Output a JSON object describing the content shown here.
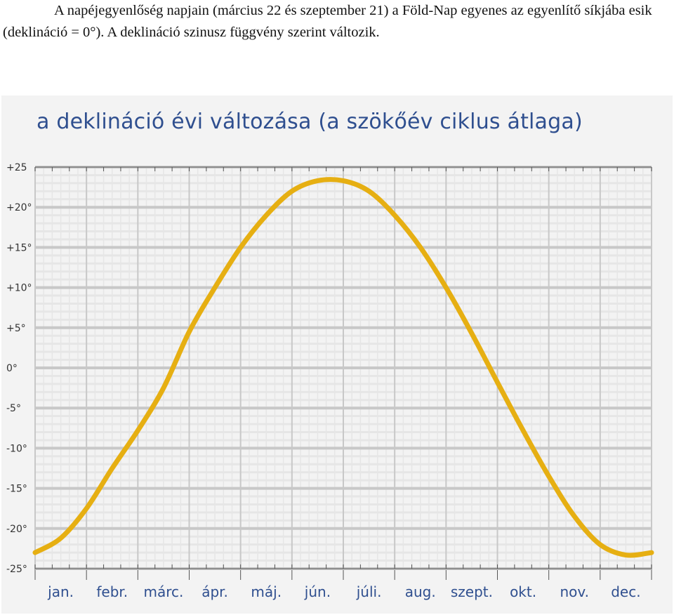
{
  "intro_text": "A napéjegyenlőség napjain (március 22 és szeptember 21) a Föld-Nap egyenes az egyenlítő síkjába esik (deklináció = 0°). A deklináció szinusz függvény szerint változik.",
  "colors": {
    "curve": "#e6af12",
    "grid_major": "#c8c8c8",
    "grid_minor": "#e6e6e6",
    "title": "#2f4f8f",
    "panel": "#f3f3f3"
  },
  "chart_data": {
    "type": "line",
    "title": "a deklináció évi változása (a szökőév ciklus átlaga)",
    "xlabel": "",
    "ylabel": "",
    "ylim": [
      -25,
      25
    ],
    "grid": true,
    "y_tick_values": [
      25,
      20,
      15,
      10,
      5,
      0,
      -5,
      -10,
      -15,
      -20,
      -25
    ],
    "y_tick_labels": [
      "+25",
      "+20°",
      "+15°",
      "+10°",
      "+5°",
      "0°",
      "-5°",
      "-10°",
      "-15°",
      "-20°",
      "-25°"
    ],
    "categories": [
      "jan.",
      "febr.",
      "márc.",
      "ápr.",
      "máj.",
      "jún.",
      "júli.",
      "aug.",
      "szept.",
      "okt.",
      "nov.",
      "dec."
    ],
    "series": [
      {
        "x_unit": "month",
        "points": [
          [
            0.0,
            -23.0
          ],
          [
            0.5,
            -21.2
          ],
          [
            1.0,
            -17.5
          ],
          [
            1.5,
            -12.5
          ],
          [
            2.0,
            -7.8
          ],
          [
            2.5,
            -2.5
          ],
          [
            3.0,
            4.5
          ],
          [
            3.5,
            10.0
          ],
          [
            4.0,
            15.0
          ],
          [
            4.5,
            19.0
          ],
          [
            5.0,
            22.0
          ],
          [
            5.5,
            23.3
          ],
          [
            6.0,
            23.3
          ],
          [
            6.5,
            22.0
          ],
          [
            7.0,
            19.0
          ],
          [
            7.5,
            15.0
          ],
          [
            8.0,
            10.0
          ],
          [
            8.5,
            4.3
          ],
          [
            9.0,
            -1.8
          ],
          [
            9.5,
            -7.8
          ],
          [
            10.0,
            -13.5
          ],
          [
            10.5,
            -18.5
          ],
          [
            11.0,
            -22.0
          ],
          [
            11.5,
            -23.3
          ],
          [
            12.0,
            -23.0
          ]
        ]
      }
    ]
  }
}
